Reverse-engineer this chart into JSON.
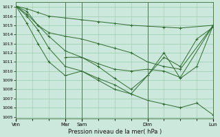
{
  "xlabel": "Pression niveau de la mer( hPa )",
  "background_color": "#cce8dc",
  "line_color": "#2d6a2d",
  "grid_color": "#99ccaa",
  "ylim": [
    1004.8,
    1017.5
  ],
  "yticks": [
    1005,
    1006,
    1007,
    1008,
    1009,
    1010,
    1011,
    1012,
    1013,
    1014,
    1015,
    1016,
    1017
  ],
  "xlim": [
    0,
    36
  ],
  "xtick_positions": [
    0,
    9,
    12,
    24,
    36
  ],
  "xtick_labels": [
    "Ven",
    "Mar",
    "Sam",
    "Dim",
    "Lun"
  ],
  "vlines": [
    0,
    9,
    12,
    24,
    36
  ],
  "series1_x": [
    0,
    2,
    4,
    6,
    9,
    12,
    15,
    18,
    21,
    24,
    27,
    30,
    36
  ],
  "series1_y": [
    1017.1,
    1016.8,
    1016.4,
    1016.0,
    1015.8,
    1015.6,
    1015.4,
    1015.2,
    1015.0,
    1014.9,
    1014.8,
    1014.7,
    1015.0
  ],
  "series2_x": [
    0,
    2,
    4,
    6,
    9,
    12,
    15,
    18,
    21,
    24,
    27,
    30,
    36
  ],
  "series2_y": [
    1017.1,
    1016.5,
    1015.0,
    1014.2,
    1013.8,
    1013.5,
    1013.0,
    1012.5,
    1012.0,
    1011.0,
    1010.5,
    1010.2,
    1015.0
  ],
  "series3_x": [
    0,
    2,
    4,
    6,
    9,
    12,
    15,
    18,
    21,
    24,
    27,
    30,
    36
  ],
  "series3_y": [
    1017.1,
    1016.2,
    1015.0,
    1013.8,
    1012.2,
    1011.5,
    1010.8,
    1010.2,
    1010.0,
    1010.2,
    1010.0,
    1009.3,
    1015.0
  ],
  "series4_x": [
    0,
    2,
    4,
    6,
    9,
    12,
    15,
    18,
    21,
    24,
    27,
    30,
    33,
    36
  ],
  "series4_y": [
    1017.1,
    1016.0,
    1014.5,
    1012.5,
    1010.5,
    1010.0,
    1009.2,
    1008.5,
    1007.5,
    1009.5,
    1011.5,
    1010.5,
    1013.5,
    1014.8
  ],
  "series5_x": [
    0,
    2,
    4,
    6,
    9,
    12,
    15,
    18,
    21,
    24,
    27,
    30,
    33,
    36
  ],
  "series5_y": [
    1017.1,
    1015.2,
    1013.0,
    1011.0,
    1009.5,
    1010.0,
    1009.0,
    1008.0,
    1007.5,
    1006.8,
    1006.4,
    1006.0,
    1006.5,
    1005.2
  ],
  "series6_x": [
    9,
    12,
    15,
    18,
    21,
    24,
    27,
    30,
    33,
    36
  ],
  "series6_y": [
    1011.5,
    1011.5,
    1010.5,
    1009.2,
    1008.0,
    1009.5,
    1012.0,
    1009.2,
    1010.5,
    1015.0
  ]
}
